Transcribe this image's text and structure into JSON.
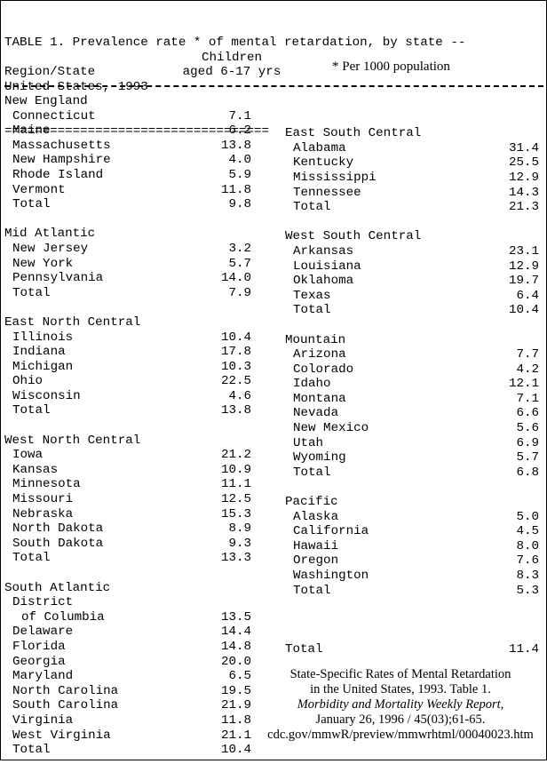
{
  "title": {
    "line1": "TABLE 1. Prevalence rate * of mental retardation, by state --",
    "line2": "United States, 1993",
    "rule": "==================================="
  },
  "header": {
    "region_label": "Region/State",
    "col_label_1": "Children",
    "col_label_2": "aged 6-17 yrs",
    "note": "* Per 1000 population"
  },
  "left_regions": [
    {
      "name": "New England",
      "rows": [
        {
          "state": "Connecticut",
          "value": "7.1"
        },
        {
          "state": "Maine",
          "value": "6.2"
        },
        {
          "state": "Massachusetts",
          "value": "13.8"
        },
        {
          "state": "New Hampshire",
          "value": "4.0"
        },
        {
          "state": "Rhode Island",
          "value": "5.9"
        },
        {
          "state": "Vermont",
          "value": "11.8"
        },
        {
          "state": "Total",
          "value": "9.8"
        }
      ]
    },
    {
      "name": "Mid Atlantic",
      "rows": [
        {
          "state": "New Jersey",
          "value": "3.2"
        },
        {
          "state": "New York",
          "value": "5.7"
        },
        {
          "state": "Pennsylvania",
          "value": "14.0"
        },
        {
          "state": "Total",
          "value": "7.9"
        }
      ]
    },
    {
      "name": "East North Central",
      "rows": [
        {
          "state": "Illinois",
          "value": "10.4"
        },
        {
          "state": "Indiana",
          "value": "17.8"
        },
        {
          "state": "Michigan",
          "value": "10.3"
        },
        {
          "state": "Ohio",
          "value": "22.5"
        },
        {
          "state": "Wisconsin",
          "value": "4.6"
        },
        {
          "state": "Total",
          "value": "13.8"
        }
      ]
    },
    {
      "name": "West North Central",
      "rows": [
        {
          "state": "Iowa",
          "value": "21.2"
        },
        {
          "state": "Kansas",
          "value": "10.9"
        },
        {
          "state": "Minnesota",
          "value": "11.1"
        },
        {
          "state": "Missouri",
          "value": "12.5"
        },
        {
          "state": "Nebraska",
          "value": "15.3"
        },
        {
          "state": "North Dakota",
          "value": "8.9"
        },
        {
          "state": "South Dakota",
          "value": "9.3"
        },
        {
          "state": "Total",
          "value": "13.3"
        }
      ]
    },
    {
      "name": "South Atlantic",
      "rows": [
        {
          "state": "District",
          "value": ""
        },
        {
          "state": "of Columbia",
          "value": "13.5",
          "sub": true
        },
        {
          "state": "Delaware",
          "value": "14.4"
        },
        {
          "state": "Florida",
          "value": "14.8"
        },
        {
          "state": "Georgia",
          "value": "20.0"
        },
        {
          "state": "Maryland",
          "value": "6.5"
        },
        {
          "state": "North Carolina",
          "value": "19.5"
        },
        {
          "state": "South Carolina",
          "value": "21.9"
        },
        {
          "state": "Virginia",
          "value": "11.8"
        },
        {
          "state": "West Virginia",
          "value": "21.1"
        },
        {
          "state": "Total",
          "value": "10.4"
        }
      ]
    }
  ],
  "right_regions": [
    {
      "name": "East South Central",
      "rows": [
        {
          "state": "Alabama",
          "value": "31.4"
        },
        {
          "state": "Kentucky",
          "value": "25.5"
        },
        {
          "state": "Mississippi",
          "value": "12.9"
        },
        {
          "state": "Tennessee",
          "value": "14.3"
        },
        {
          "state": "Total",
          "value": "21.3"
        }
      ]
    },
    {
      "name": "West South Central",
      "rows": [
        {
          "state": "Arkansas",
          "value": "23.1"
        },
        {
          "state": "Louisiana",
          "value": "12.9"
        },
        {
          "state": "Oklahoma",
          "value": "19.7"
        },
        {
          "state": "Texas",
          "value": "6.4"
        },
        {
          "state": "Total",
          "value": "10.4"
        }
      ]
    },
    {
      "name": "Mountain",
      "rows": [
        {
          "state": "Arizona",
          "value": "7.7"
        },
        {
          "state": "Colorado",
          "value": "4.2"
        },
        {
          "state": "Idaho",
          "value": "12.1"
        },
        {
          "state": "Montana",
          "value": "7.1"
        },
        {
          "state": "Nevada",
          "value": "6.6"
        },
        {
          "state": "New Mexico",
          "value": "5.6"
        },
        {
          "state": "Utah",
          "value": "6.9"
        },
        {
          "state": "Wyoming",
          "value": "5.7"
        },
        {
          "state": "Total",
          "value": "6.8"
        }
      ]
    },
    {
      "name": "Pacific",
      "rows": [
        {
          "state": "Alaska",
          "value": "5.0"
        },
        {
          "state": "California",
          "value": "4.5"
        },
        {
          "state": "Hawaii",
          "value": "8.0"
        },
        {
          "state": "Oregon",
          "value": "7.6"
        },
        {
          "state": "Washington",
          "value": "8.3"
        },
        {
          "state": "Total",
          "value": "5.3"
        }
      ]
    }
  ],
  "grand_total": {
    "label": "Total",
    "value": "11.4"
  },
  "citation": {
    "line1": "State-Specific Rates of Mental Retardation",
    "line2": "in the United States, 1993. Table 1.",
    "line3": "Morbidity and Mortality Weekly Report,",
    "line4": "January 26, 1996 / 45(03);61-65.",
    "line5": "cdc.gov/mmwR/preview/mmwrhtml/00040023.htm"
  }
}
